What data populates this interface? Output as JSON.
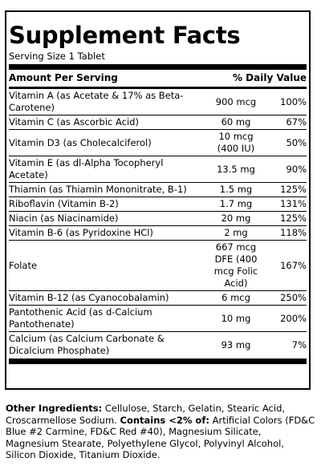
{
  "title": "Supplement Facts",
  "serving": "Serving Size 1 Tablet",
  "header": {
    "left": "Amount Per Serving",
    "right": "% Daily Value"
  },
  "rows": [
    {
      "name": "Vitamin A (as Acetate & 17% as Beta-Carotene)",
      "amount": "900 mcg",
      "dv": "100%"
    },
    {
      "name": "Vitamin C (as Ascorbic Acid)",
      "amount": "60 mg",
      "dv": "67%"
    },
    {
      "name": "Vitamin D3 (as Cholecalciferol)",
      "amount": "10 mcg (400 IU)",
      "dv": "50%"
    },
    {
      "name": "Vitamin E (as dl-Alpha Tocopheryl Acetate)",
      "amount": "13.5 mg",
      "dv": "90%"
    },
    {
      "name": "Thiamin (as Thiamin Mononitrate, B-1)",
      "amount": "1.5 mg",
      "dv": "125%"
    },
    {
      "name": "Riboflavin (Vitamin B-2)",
      "amount": "1.7 mg",
      "dv": "131%"
    },
    {
      "name": "Niacin (as Niacinamide)",
      "amount": "20 mg",
      "dv": "125%"
    },
    {
      "name": "Vitamin B-6 (as Pyridoxine HCl)",
      "amount": "2 mg",
      "dv": "118%"
    },
    {
      "name": "Folate",
      "amount": "667 mcg DFE (400 mcg Folic Acid)",
      "dv": "167%"
    },
    {
      "name": "Vitamin B-12 (as Cyanocobalamin)",
      "amount": "6 mcg",
      "dv": "250%"
    },
    {
      "name": "Pantothenic Acid (as d-Calcium Pantothenate)",
      "amount": "10 mg",
      "dv": "200%"
    },
    {
      "name": "Calcium (as Calcium Carbonate & Dicalcium Phosphate)",
      "amount": "93 mg",
      "dv": "7%"
    }
  ],
  "ingredients": {
    "label": "Other Ingredients:",
    "text1": " Cellulose, Starch, Gelatin, Stearic Acid, Croscarmellose Sodium. ",
    "contains_label": "Contains <2% of:",
    "text2": " Artificial Colors (FD&C Blue #2 Carmine, FD&C Red #40), Magnesium Silicate, Magnesium Stearate, Polyethylene Glycol, Polyvinyl Alcohol, Silicon Dioxide, Titanium Dioxide."
  }
}
